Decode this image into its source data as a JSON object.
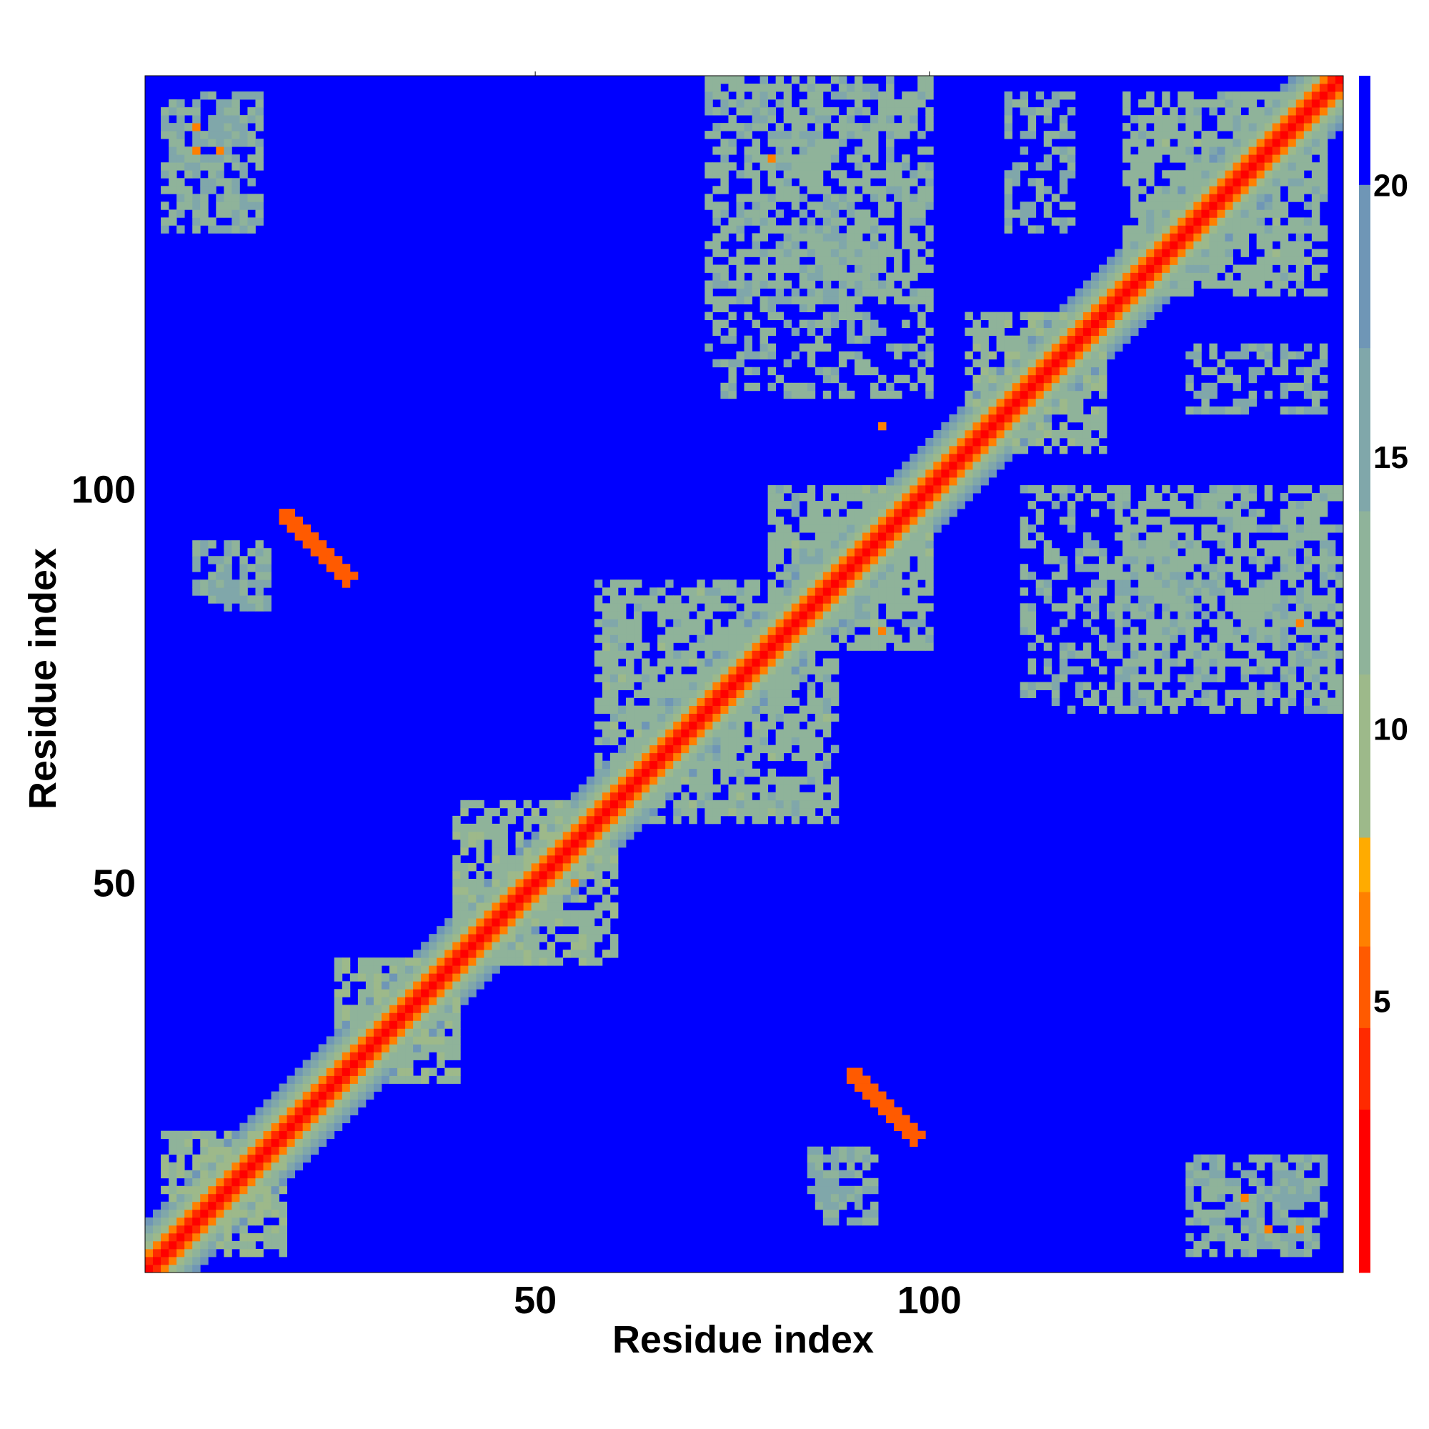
{
  "chart_data": {
    "type": "heatmap",
    "title": "",
    "xlabel": "Residue index",
    "ylabel": "Residue index",
    "n": 152,
    "xlim": [
      1,
      152
    ],
    "ylim": [
      1,
      152
    ],
    "x_ticks": [
      50,
      100
    ],
    "y_ticks": [
      50,
      100
    ],
    "colorbar": {
      "min": 0,
      "max": 22,
      "ticks": [
        5,
        10,
        15,
        20
      ],
      "colors": [
        "#ff0000",
        "#ff2a00",
        "#ff5a00",
        "#ff8000",
        "#ffab00",
        "#9db98a",
        "#8fb39a",
        "#80a7aa",
        "#6f96b6",
        "#0000ff"
      ],
      "levels": [
        0,
        3,
        4.5,
        6,
        7,
        8,
        11,
        14,
        17,
        20,
        22
      ]
    },
    "background_value": 22,
    "diagonal_profile": [
      {
        "offset": 0,
        "value": 1
      },
      {
        "offset": 1,
        "value": 3.8
      },
      {
        "offset": 2,
        "value": 6
      },
      {
        "offset": 3,
        "value": 9.5
      },
      {
        "offset": 4,
        "value": 12.5
      },
      {
        "offset": 5,
        "value": 15
      },
      {
        "offset": 6,
        "value": 18.5
      }
    ],
    "contact_regions": [
      {
        "residues_i": [
          3,
          18
        ],
        "residues_j": [
          3,
          18
        ],
        "value": 11
      },
      {
        "residues_i": [
          25,
          40
        ],
        "residues_j": [
          25,
          40
        ],
        "value": 12
      },
      {
        "residues_i": [
          40,
          60
        ],
        "residues_j": [
          40,
          60
        ],
        "value": 12
      },
      {
        "residues_i": [
          58,
          88
        ],
        "residues_j": [
          58,
          88
        ],
        "value": 12.5
      },
      {
        "residues_i": [
          80,
          100
        ],
        "residues_j": [
          80,
          100
        ],
        "value": 12.5
      },
      {
        "residues_i": [
          105,
          122
        ],
        "residues_j": [
          105,
          122
        ],
        "value": 12
      },
      {
        "residues_i": [
          125,
          150
        ],
        "residues_j": [
          125,
          150
        ],
        "value": 12.5
      },
      {
        "residues_i": [
          72,
          100
        ],
        "residues_j": [
          112,
          152
        ],
        "value": 13
      },
      {
        "residues_i": [
          124,
          152
        ],
        "residues_j": [
          72,
          100
        ],
        "value": 13
      },
      {
        "residues_i": [
          5,
          15
        ],
        "residues_j": [
          140,
          150
        ],
        "value": 14
      },
      {
        "residues_i": [
          140,
          150
        ],
        "residues_j": [
          5,
          15
        ],
        "value": 14
      },
      {
        "residues_i": [
          7,
          16
        ],
        "residues_j": [
          85,
          93
        ],
        "value": 14
      },
      {
        "residues_i": [
          85,
          93
        ],
        "residues_j": [
          7,
          16
        ],
        "value": 14
      },
      {
        "residues_i": [
          133,
          149
        ],
        "residues_j": [
          3,
          15
        ],
        "value": 14
      },
      {
        "residues_i": [
          133,
          149
        ],
        "residues_j": [
          78,
          97
        ],
        "value": 14
      },
      {
        "residues_i": [
          3,
          15
        ],
        "residues_j": [
          133,
          149
        ],
        "value": 14
      },
      {
        "residues_i": [
          78,
          97
        ],
        "residues_j": [
          133,
          149
        ],
        "value": 14
      },
      {
        "residues_i": [
          110,
          118
        ],
        "residues_j": [
          133,
          150
        ],
        "value": 14
      }
    ],
    "beta_strand_contacts": [
      {
        "i_start": 18,
        "j_start": 97,
        "length": 9,
        "value": 5.5
      },
      {
        "i_start": 90,
        "j_start": 26,
        "length": 9,
        "value": 5.5
      }
    ],
    "isolated_contacts": [
      {
        "i": 7,
        "j": 146,
        "value": 6
      },
      {
        "i": 7,
        "j": 143,
        "value": 6
      },
      {
        "i": 10,
        "j": 143,
        "value": 6
      },
      {
        "i": 80,
        "j": 142,
        "value": 6
      },
      {
        "i": 94,
        "j": 82,
        "value": 6
      },
      {
        "i": 140,
        "j": 10,
        "value": 6
      },
      {
        "i": 143,
        "j": 6,
        "value": 6
      },
      {
        "i": 147,
        "j": 6,
        "value": 6
      },
      {
        "i": 147,
        "j": 83,
        "value": 6
      },
      {
        "i": 94,
        "j": 108,
        "value": 6
      },
      {
        "i": 55,
        "j": 50,
        "value": 6
      }
    ]
  }
}
